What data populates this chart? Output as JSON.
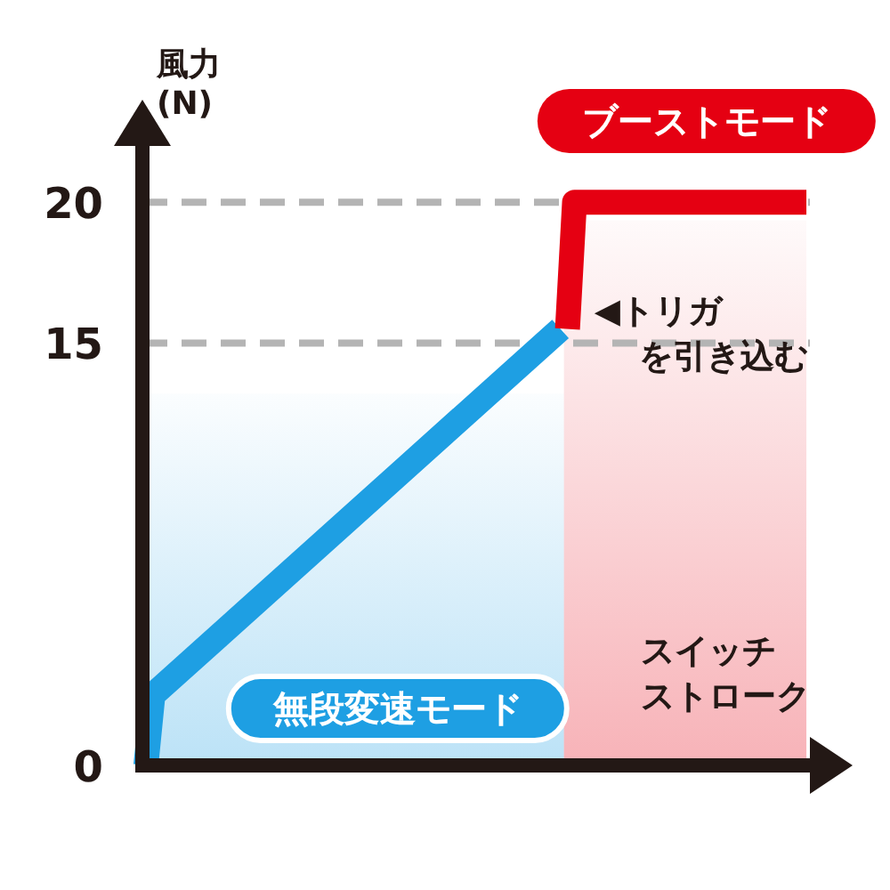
{
  "chart_data": {
    "type": "line",
    "ylabel": "風力 (N)",
    "xlabel": "スイッチストローク",
    "categories": [
      null,
      null,
      null,
      null,
      null,
      null,
      null,
      null,
      null,
      null,
      null,
      null,
      null,
      null,
      null,
      null,
      null,
      null,
      null,
      null,
      null,
      null,
      null,
      null,
      null,
      null,
      null,
      null,
      null,
      null,
      null,
      null,
      null,
      null,
      null,
      null,
      null,
      null,
      null,
      null,
      null,
      null,
      null,
      null,
      null,
      null,
      null,
      null,
      null,
      null,
      null,
      null,
      null,
      null,
      null,
      null,
      null,
      null,
      null,
      null,
      null,
      null,
      null,
      null,
      null,
      null,
      null,
      null,
      null,
      null,
      null,
      null,
      null,
      null,
      null,
      null,
      null,
      null,
      null,
      null,
      null,
      null,
      null,
      null,
      null,
      null,
      null,
      null,
      null,
      null,
      null,
      null,
      null,
      null,
      null
    ],
    "ylim": [
      0,
      22
    ],
    "yticks": [
      0,
      15,
      20
    ],
    "tick_labels": "y",
    "marker": "none",
    "line_style": "solid",
    "series": [
      {
        "color": "#1e9fe3",
        "values": [
          0,
          2.5,
          null,
          null,
          null,
          null,
          null,
          null,
          null,
          null,
          null,
          null,
          null,
          null,
          null,
          null,
          null,
          null,
          null,
          null,
          null,
          null,
          null,
          null,
          null,
          null,
          null,
          null,
          null,
          null,
          null,
          null,
          null,
          null,
          null,
          null,
          null,
          null,
          null,
          null,
          null,
          null,
          null,
          null,
          null,
          null,
          null,
          null,
          null,
          null,
          null,
          null,
          null,
          null,
          null,
          null,
          null,
          null,
          null,
          15.5,
          null,
          null,
          null,
          null,
          null,
          null,
          null,
          null,
          null,
          null,
          null,
          null,
          null,
          null,
          null,
          null,
          null,
          null,
          null,
          null,
          null,
          null,
          null,
          null,
          null,
          null,
          null,
          null,
          null,
          null,
          null,
          null,
          null,
          null,
          null
        ]
      },
      {
        "color": "#e50012",
        "values": [
          null,
          null,
          null,
          null,
          null,
          null,
          null,
          null,
          null,
          null,
          null,
          null,
          null,
          null,
          null,
          null,
          null,
          null,
          null,
          null,
          null,
          null,
          null,
          null,
          null,
          null,
          null,
          null,
          null,
          null,
          null,
          null,
          null,
          null,
          null,
          null,
          null,
          null,
          null,
          null,
          null,
          null,
          null,
          null,
          null,
          null,
          null,
          null,
          null,
          null,
          null,
          null,
          null,
          null,
          null,
          null,
          null,
          null,
          null,
          null,
          15.5,
          20,
          null,
          null,
          null,
          null,
          null,
          null,
          null,
          null,
          null,
          null,
          null,
          null,
          null,
          null,
          null,
          null,
          null,
          null,
          null,
          null,
          null,
          null,
          null,
          null,
          null,
          null,
          null,
          null,
          null,
          null,
          null,
          null,
          20
        ]
      }
    ],
    "ref_lines": [
      {
        "axis": "y",
        "value": 15,
        "color": "#b4b4b4",
        "line_style": "dashed"
      },
      {
        "axis": "y",
        "value": 20,
        "color": "#b4b4b4",
        "line_style": "dashed"
      }
    ],
    "annotations": [
      "無段変速モード",
      "ブーストモード",
      "◀トリガを引き込む"
    ]
  }
}
